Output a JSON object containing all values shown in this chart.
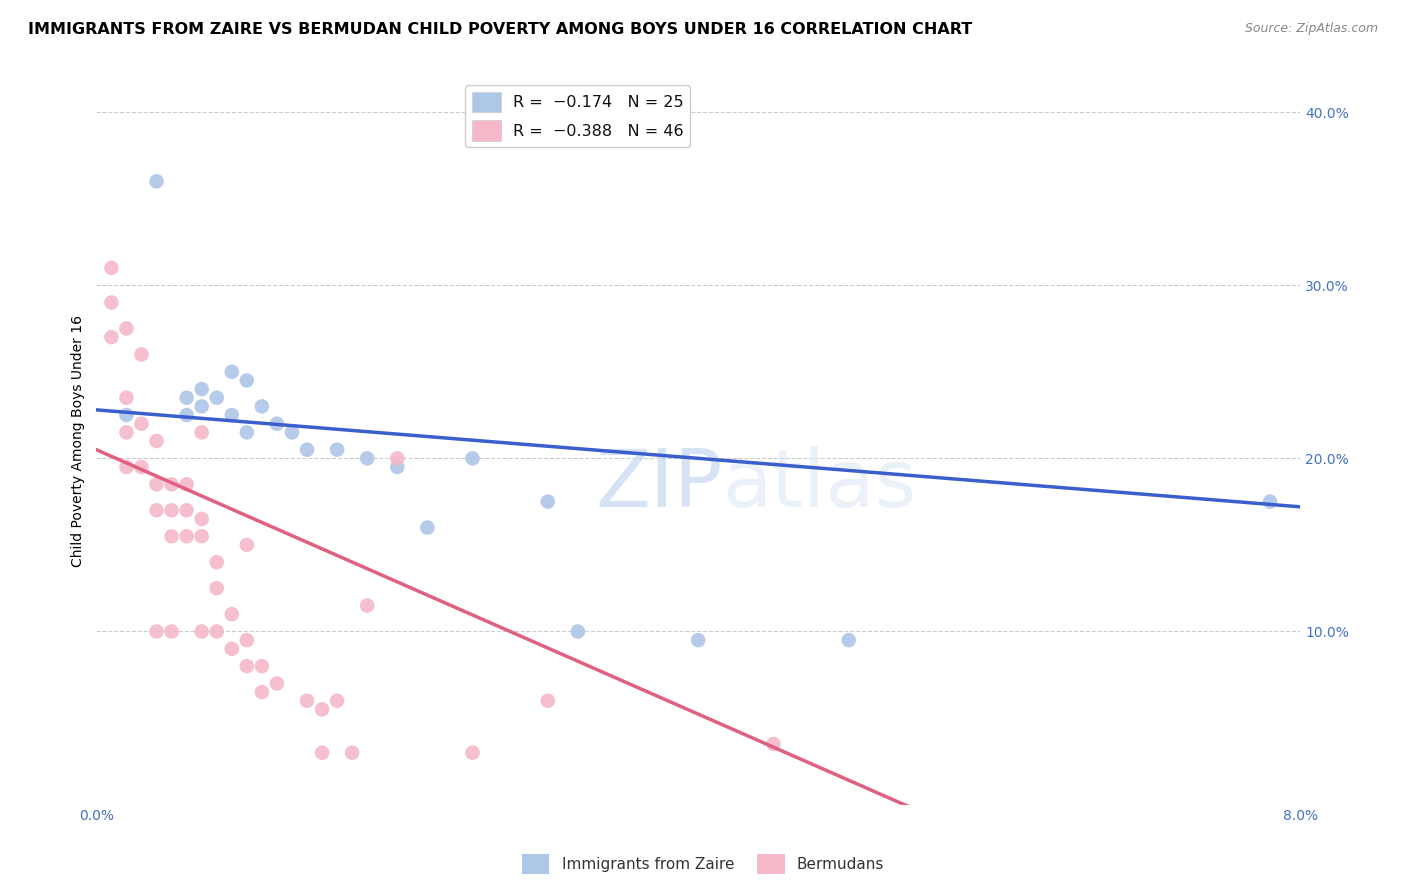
{
  "title": "IMMIGRANTS FROM ZAIRE VS BERMUDAN CHILD POVERTY AMONG BOYS UNDER 16 CORRELATION CHART",
  "source": "Source: ZipAtlas.com",
  "ylabel": "Child Poverty Among Boys Under 16",
  "xlim": [
    0.0,
    0.08
  ],
  "ylim": [
    0.0,
    0.42
  ],
  "yticks": [
    0.0,
    0.1,
    0.2,
    0.3,
    0.4
  ],
  "ytick_labels": [
    "",
    "10.0%",
    "20.0%",
    "30.0%",
    "40.0%"
  ],
  "xticks": [
    0.0,
    0.02,
    0.04,
    0.06,
    0.08
  ],
  "xtick_labels": [
    "0.0%",
    "",
    "",
    "",
    "8.0%"
  ],
  "legend_label1": "Immigrants from Zaire",
  "legend_label2": "Bermudans",
  "blue_color": "#aec6e8",
  "pink_color": "#f5b8c8",
  "blue_line_color": "#3a5fcd",
  "pink_line_color": "#e06080",
  "blue_scatter_x": [
    0.002,
    0.004,
    0.006,
    0.006,
    0.007,
    0.007,
    0.008,
    0.009,
    0.009,
    0.01,
    0.01,
    0.011,
    0.012,
    0.013,
    0.014,
    0.016,
    0.018,
    0.02,
    0.022,
    0.025,
    0.03,
    0.032,
    0.04,
    0.05,
    0.078
  ],
  "blue_scatter_y": [
    0.225,
    0.36,
    0.235,
    0.225,
    0.24,
    0.23,
    0.235,
    0.25,
    0.225,
    0.245,
    0.215,
    0.23,
    0.22,
    0.215,
    0.205,
    0.205,
    0.2,
    0.195,
    0.16,
    0.2,
    0.175,
    0.1,
    0.095,
    0.095,
    0.175
  ],
  "pink_scatter_x": [
    0.001,
    0.001,
    0.001,
    0.002,
    0.002,
    0.002,
    0.002,
    0.003,
    0.003,
    0.003,
    0.004,
    0.004,
    0.004,
    0.004,
    0.005,
    0.005,
    0.005,
    0.005,
    0.006,
    0.006,
    0.006,
    0.007,
    0.007,
    0.007,
    0.007,
    0.008,
    0.008,
    0.008,
    0.009,
    0.009,
    0.01,
    0.01,
    0.01,
    0.011,
    0.011,
    0.012,
    0.014,
    0.015,
    0.015,
    0.016,
    0.017,
    0.018,
    0.02,
    0.025,
    0.03,
    0.045
  ],
  "pink_scatter_y": [
    0.31,
    0.29,
    0.27,
    0.275,
    0.235,
    0.215,
    0.195,
    0.26,
    0.22,
    0.195,
    0.21,
    0.185,
    0.17,
    0.1,
    0.185,
    0.17,
    0.155,
    0.1,
    0.185,
    0.17,
    0.155,
    0.215,
    0.165,
    0.155,
    0.1,
    0.14,
    0.125,
    0.1,
    0.11,
    0.09,
    0.15,
    0.095,
    0.08,
    0.08,
    0.065,
    0.07,
    0.06,
    0.055,
    0.03,
    0.06,
    0.03,
    0.115,
    0.2,
    0.03,
    0.06,
    0.035
  ],
  "blue_trendline_x": [
    0.0,
    0.08
  ],
  "blue_trendline_y": [
    0.228,
    0.172
  ],
  "pink_trendline_x": [
    0.0,
    0.055
  ],
  "pink_trendline_y": [
    0.205,
    -0.005
  ],
  "watermark_part1": "ZIP",
  "watermark_part2": "atlas",
  "background_color": "#ffffff",
  "grid_color": "#cccccc",
  "title_fontsize": 11.5,
  "axis_label_fontsize": 10,
  "tick_label_color": "#4472c4",
  "tick_label_fontsize": 10,
  "source_text": "Source: ZipAtlas.com"
}
